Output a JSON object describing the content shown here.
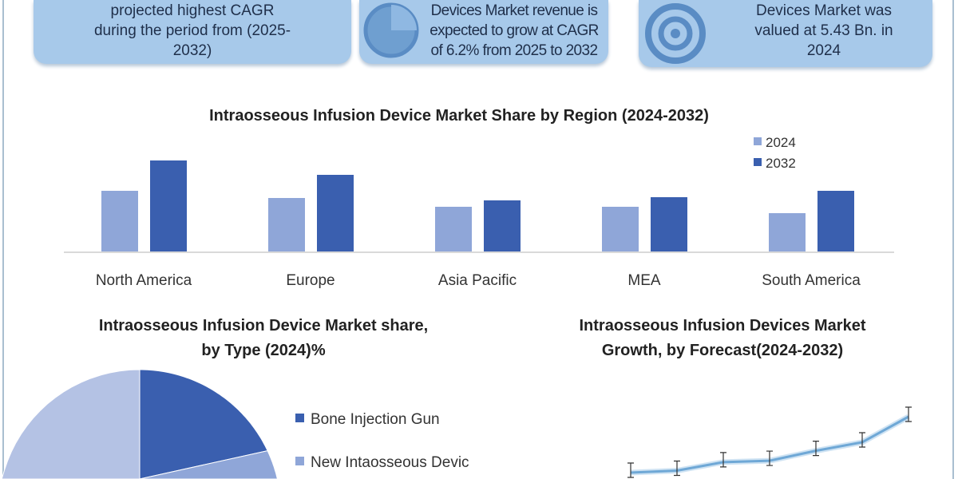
{
  "cards": [
    {
      "text": "projected highest CAGR during the period from (2025-2032)",
      "lines": [
        "projected highest CAGR",
        "during the period from (2025-",
        "2032)"
      ]
    },
    {
      "text": "Devices Market revenue is expected to grow at CAGR of 6.2% from 2025 to 2032",
      "lines": [
        "Devices Market revenue is",
        "expected to grow at CAGR",
        "of 6.2% from 2025 to 2032"
      ],
      "icon": "pie-chart-icon"
    },
    {
      "text": "Devices Market was valued at 5.43 Bn. in 2024",
      "lines": [
        "Devices Market was",
        "valued at 5.43 Bn. in",
        "2024"
      ],
      "icon": "target-icon"
    }
  ],
  "colors": {
    "light": "#8fa6d8",
    "dark": "#3a5faf",
    "pie_light": "#b4c2e4",
    "line": "#6fa8d6",
    "card": "#a7c9ea"
  },
  "chart_data": [
    {
      "type": "bar",
      "title": "Intraosseous Infusion Device Market Share by Region (2024-2032)",
      "categories": [
        "North America",
        "Europe",
        "Asia Pacific",
        "MEA",
        "South America"
      ],
      "series": [
        {
          "name": "2024",
          "values": [
            76,
            67,
            56,
            56,
            48
          ]
        },
        {
          "name": "2032",
          "values": [
            114,
            96,
            64,
            68,
            76
          ]
        }
      ],
      "legend": "top-right",
      "grid": false
    },
    {
      "type": "pie",
      "title": "Intraosseous Infusion Device Market share, by Type (2024)%",
      "labels": [
        "Bone Injection Gun",
        "New Intaosseous Devic",
        ""
      ],
      "values": [
        18,
        14,
        68
      ],
      "legend": "right"
    },
    {
      "type": "line",
      "title": "Intraosseous Infusion Devices Market Growth, by Forecast(2024-2032)",
      "values": [
        5.43,
        5.5,
        5.8,
        5.85,
        6.2,
        6.5,
        7.4
      ],
      "error_bars": true,
      "grid": false
    }
  ]
}
